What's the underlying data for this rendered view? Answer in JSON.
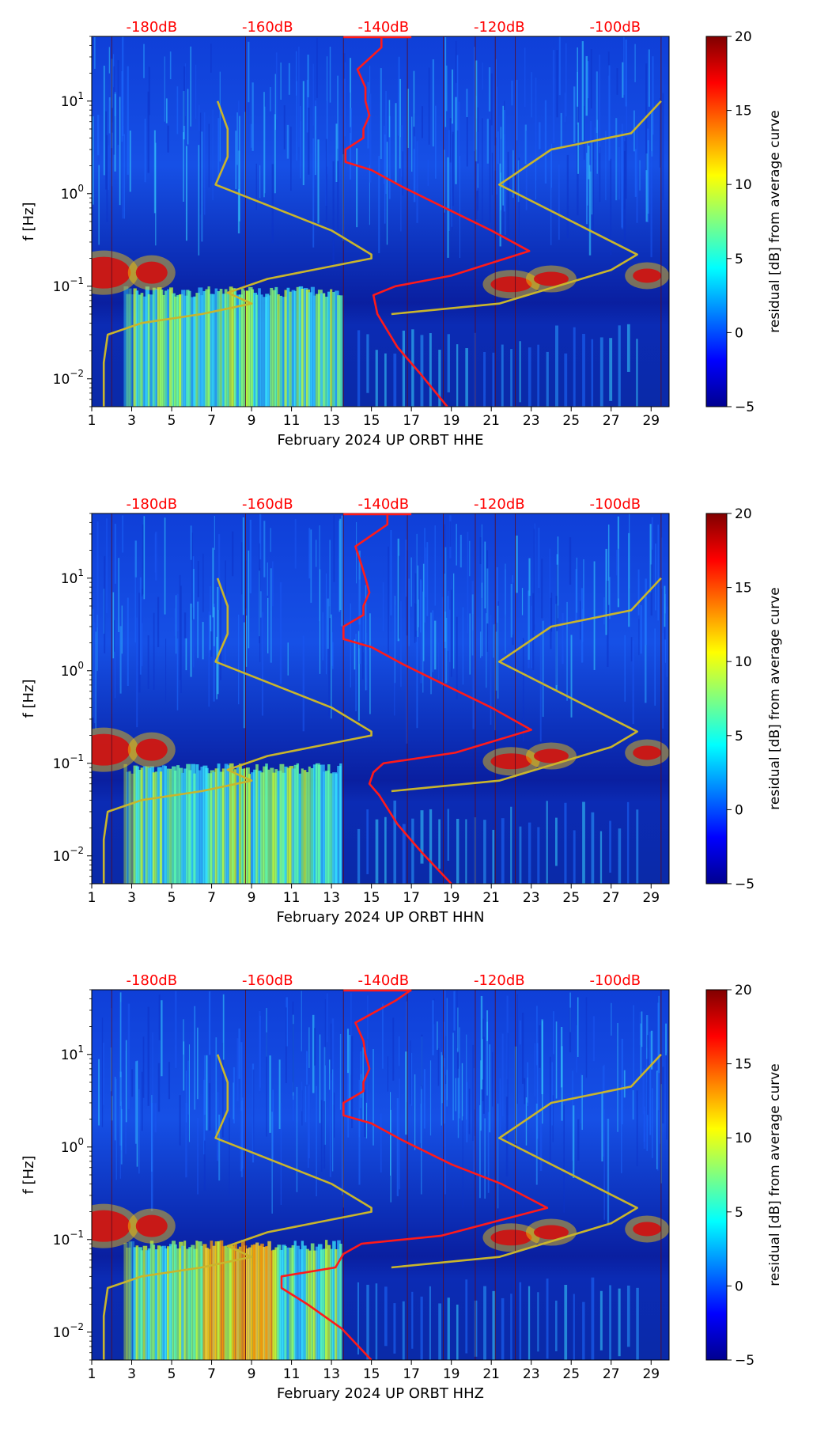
{
  "chart_data": [
    {
      "type": "heatmap",
      "xlabel": "February 2024 UP ORBT  HHE",
      "ylabel": "f [Hz]",
      "x_ticks": [
        "1",
        "3",
        "5",
        "7",
        "9",
        "11",
        "13",
        "15",
        "17",
        "19",
        "21",
        "23",
        "25",
        "27",
        "29"
      ],
      "x_range": [
        1,
        29.9
      ],
      "y_scale": "log",
      "y_range": [
        0.005,
        50
      ],
      "y_ticks": [
        {
          "value": 0.01,
          "base": "10",
          "exp": "−2"
        },
        {
          "value": 0.1,
          "base": "10",
          "exp": "−1"
        },
        {
          "value": 1,
          "base": "10",
          "exp": "0"
        },
        {
          "value": 10,
          "base": "10",
          "exp": "1"
        }
      ],
      "top_axis": {
        "labels": [
          "-180dB",
          "-160dB",
          "-140dB",
          "-120dB",
          "-100dB"
        ],
        "positions": [
          4,
          9.8,
          15.6,
          21.4,
          27.2
        ],
        "color": "#ff0000"
      },
      "colorbar": {
        "label": "residual [dB] from average curve",
        "range": [
          -5,
          20
        ],
        "ticks": [
          "20",
          "15",
          "10",
          "5",
          "0",
          "−5"
        ]
      },
      "series": [
        {
          "color": "#ff1a1a",
          "points": [
            [
              18.8,
              0.005
            ],
            [
              17.5,
              0.011
            ],
            [
              16.3,
              0.022
            ],
            [
              15.3,
              0.05
            ],
            [
              15.1,
              0.08
            ],
            [
              16.2,
              0.1
            ],
            [
              19,
              0.13
            ],
            [
              22.9,
              0.24
            ],
            [
              21,
              0.4
            ],
            [
              19,
              0.65
            ],
            [
              16.5,
              1.2
            ],
            [
              15,
              1.8
            ],
            [
              13.7,
              2.2
            ],
            [
              13.7,
              3
            ],
            [
              14.6,
              4
            ],
            [
              14.6,
              5
            ],
            [
              14.9,
              7
            ],
            [
              14.7,
              10
            ],
            [
              14.7,
              14
            ],
            [
              14.3,
              22
            ],
            [
              15.5,
              38
            ],
            [
              15.5,
              50
            ]
          ]
        },
        {
          "color": "#c9b52c",
          "points": [
            [
              1.6,
              0.005
            ],
            [
              1.6,
              0.015
            ],
            [
              1.8,
              0.03
            ],
            [
              3.5,
              0.04
            ],
            [
              6.5,
              0.05
            ],
            [
              9,
              0.065
            ],
            [
              7.8,
              0.085
            ],
            [
              9.8,
              0.12
            ],
            [
              15,
              0.2
            ],
            [
              15,
              0.22
            ],
            [
              13,
              0.4
            ],
            [
              7.2,
              1.25
            ],
            [
              7.8,
              2.5
            ],
            [
              7.8,
              5
            ],
            [
              7.3,
              10
            ]
          ]
        },
        {
          "color": "#c9b52c",
          "points": [
            [
              16,
              0.05
            ],
            [
              21.4,
              0.065
            ],
            [
              27,
              0.15
            ],
            [
              28.3,
              0.22
            ],
            [
              21.4,
              1.25
            ],
            [
              24,
              3
            ],
            [
              28,
              4.5
            ],
            [
              29.5,
              10
            ]
          ]
        }
      ]
    },
    {
      "type": "heatmap",
      "xlabel": "February 2024 UP ORBT  HHN",
      "ylabel": "f [Hz]",
      "x_ticks": [
        "1",
        "3",
        "5",
        "7",
        "9",
        "11",
        "13",
        "15",
        "17",
        "19",
        "21",
        "23",
        "25",
        "27",
        "29"
      ],
      "x_range": [
        1,
        29.9
      ],
      "y_scale": "log",
      "y_range": [
        0.005,
        50
      ],
      "y_ticks": [
        {
          "value": 0.01,
          "base": "10",
          "exp": "−2"
        },
        {
          "value": 0.1,
          "base": "10",
          "exp": "−1"
        },
        {
          "value": 1,
          "base": "10",
          "exp": "0"
        },
        {
          "value": 10,
          "base": "10",
          "exp": "1"
        }
      ],
      "top_axis": {
        "labels": [
          "-180dB",
          "-160dB",
          "-140dB",
          "-120dB",
          "-100dB"
        ],
        "positions": [
          4,
          9.8,
          15.6,
          21.4,
          27.2
        ],
        "color": "#ff0000"
      },
      "colorbar": {
        "label": "residual [dB] from average curve",
        "range": [
          -5,
          20
        ],
        "ticks": [
          "20",
          "15",
          "10",
          "5",
          "0",
          "−5"
        ]
      },
      "series": [
        {
          "color": "#ff1a1a",
          "points": [
            [
              19,
              0.005
            ],
            [
              17.5,
              0.011
            ],
            [
              16.3,
              0.022
            ],
            [
              15.4,
              0.045
            ],
            [
              14.9,
              0.06
            ],
            [
              15.1,
              0.08
            ],
            [
              15.6,
              0.1
            ],
            [
              19.2,
              0.13
            ],
            [
              23,
              0.23
            ],
            [
              21,
              0.4
            ],
            [
              19,
              0.65
            ],
            [
              16.5,
              1.2
            ],
            [
              15,
              1.8
            ],
            [
              13.6,
              2.2
            ],
            [
              13.6,
              3
            ],
            [
              14.6,
              4
            ],
            [
              14.6,
              5
            ],
            [
              14.9,
              7
            ],
            [
              14.7,
              10
            ],
            [
              14.5,
              14
            ],
            [
              14.2,
              22
            ],
            [
              15.8,
              38
            ],
            [
              15.8,
              50
            ]
          ]
        },
        {
          "color": "#c9b52c",
          "points": [
            [
              1.6,
              0.005
            ],
            [
              1.6,
              0.015
            ],
            [
              1.8,
              0.03
            ],
            [
              3.5,
              0.04
            ],
            [
              6.5,
              0.05
            ],
            [
              9,
              0.065
            ],
            [
              7.8,
              0.085
            ],
            [
              9.8,
              0.12
            ],
            [
              15,
              0.2
            ],
            [
              15,
              0.22
            ],
            [
              13,
              0.4
            ],
            [
              7.2,
              1.25
            ],
            [
              7.8,
              2.5
            ],
            [
              7.8,
              5
            ],
            [
              7.3,
              10
            ]
          ]
        },
        {
          "color": "#c9b52c",
          "points": [
            [
              16,
              0.05
            ],
            [
              21.4,
              0.065
            ],
            [
              27,
              0.15
            ],
            [
              28.3,
              0.22
            ],
            [
              21.4,
              1.25
            ],
            [
              24,
              3
            ],
            [
              28,
              4.5
            ],
            [
              29.5,
              10
            ]
          ]
        }
      ]
    },
    {
      "type": "heatmap",
      "xlabel": "February 2024 UP ORBT  HHZ",
      "ylabel": "f [Hz]",
      "x_ticks": [
        "1",
        "3",
        "5",
        "7",
        "9",
        "11",
        "13",
        "15",
        "17",
        "19",
        "21",
        "23",
        "25",
        "27",
        "29"
      ],
      "x_range": [
        1,
        29.9
      ],
      "y_scale": "log",
      "y_range": [
        0.005,
        50
      ],
      "y_ticks": [
        {
          "value": 0.01,
          "base": "10",
          "exp": "−2"
        },
        {
          "value": 0.1,
          "base": "10",
          "exp": "−1"
        },
        {
          "value": 1,
          "base": "10",
          "exp": "0"
        },
        {
          "value": 10,
          "base": "10",
          "exp": "1"
        }
      ],
      "top_axis": {
        "labels": [
          "-180dB",
          "-160dB",
          "-140dB",
          "-120dB",
          "-100dB"
        ],
        "positions": [
          4,
          9.8,
          15.6,
          21.4,
          27.2
        ],
        "color": "#ff0000"
      },
      "colorbar": {
        "label": "residual [dB] from average curve",
        "range": [
          -5,
          20
        ],
        "ticks": [
          "20",
          "15",
          "10",
          "5",
          "0",
          "−5"
        ]
      },
      "series": [
        {
          "color": "#ff1a1a",
          "points": [
            [
              15,
              0.005
            ],
            [
              13.5,
              0.011
            ],
            [
              11.8,
              0.02
            ],
            [
              10.5,
              0.03
            ],
            [
              10.5,
              0.04
            ],
            [
              13.2,
              0.05
            ],
            [
              13.6,
              0.07
            ],
            [
              14.5,
              0.09
            ],
            [
              18.5,
              0.11
            ],
            [
              23.8,
              0.22
            ],
            [
              21.5,
              0.4
            ],
            [
              19,
              0.65
            ],
            [
              16.5,
              1.2
            ],
            [
              15,
              1.8
            ],
            [
              13.6,
              2.2
            ],
            [
              13.6,
              3
            ],
            [
              14.6,
              4
            ],
            [
              14.6,
              5
            ],
            [
              14.9,
              7
            ],
            [
              14.7,
              10
            ],
            [
              14.6,
              14
            ],
            [
              14.2,
              22
            ],
            [
              16.2,
              38
            ],
            [
              17,
              50
            ]
          ]
        },
        {
          "color": "#c9b52c",
          "points": [
            [
              1.6,
              0.005
            ],
            [
              1.6,
              0.015
            ],
            [
              1.8,
              0.03
            ],
            [
              3.5,
              0.04
            ],
            [
              6.5,
              0.05
            ],
            [
              9,
              0.065
            ],
            [
              7.8,
              0.085
            ],
            [
              9.8,
              0.12
            ],
            [
              15,
              0.2
            ],
            [
              15,
              0.22
            ],
            [
              13,
              0.4
            ],
            [
              7.2,
              1.25
            ],
            [
              7.8,
              2.5
            ],
            [
              7.8,
              5
            ],
            [
              7.3,
              10
            ]
          ]
        },
        {
          "color": "#c9b52c",
          "points": [
            [
              16,
              0.05
            ],
            [
              21.4,
              0.065
            ],
            [
              27,
              0.15
            ],
            [
              28.3,
              0.22
            ],
            [
              21.4,
              1.25
            ],
            [
              24,
              3
            ],
            [
              28,
              4.5
            ],
            [
              29.5,
              10
            ]
          ]
        }
      ]
    }
  ]
}
